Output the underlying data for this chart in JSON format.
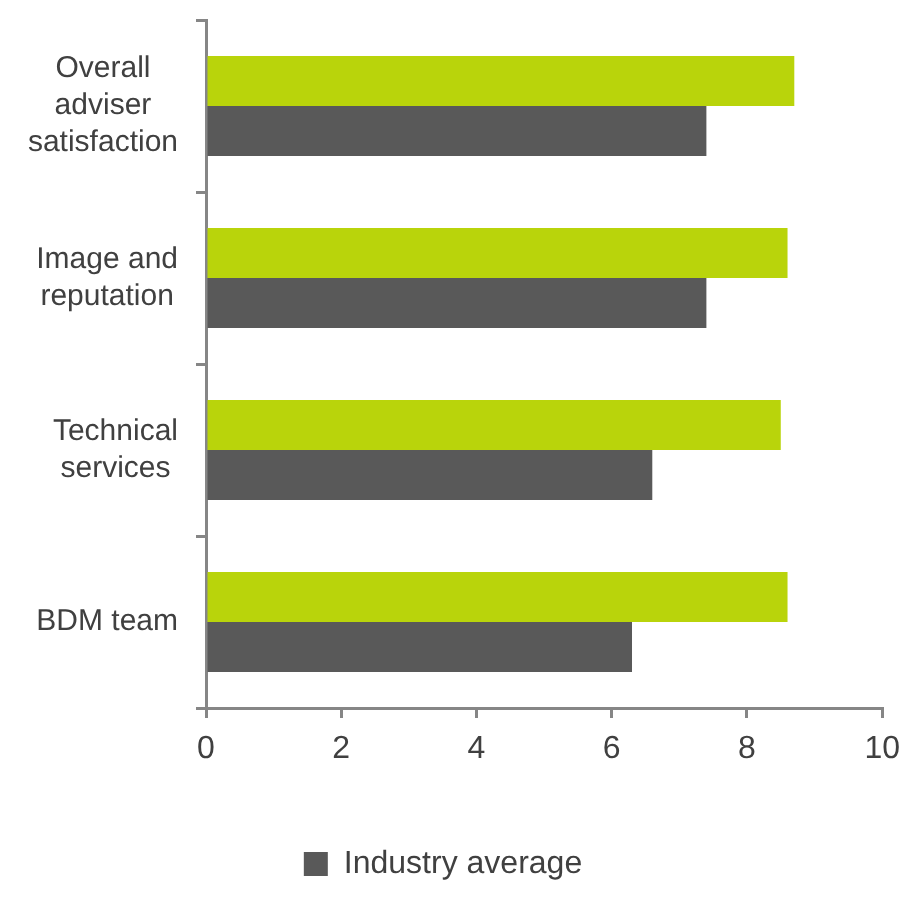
{
  "chart_data": {
    "type": "bar",
    "orientation": "horizontal",
    "categories": [
      "Overall adviser satisfaction",
      "Image and reputation",
      "Technical services",
      "BDM team"
    ],
    "series": [
      {
        "color": "#b9d40b",
        "values": [
          8.7,
          8.6,
          8.5,
          8.6
        ]
      },
      {
        "name": "Industry average",
        "color": "#595959",
        "values": [
          7.4,
          7.4,
          6.6,
          6.3
        ]
      }
    ],
    "xlim": [
      0,
      10
    ],
    "xticks": [
      0,
      2,
      4,
      6,
      8,
      10
    ],
    "grid": false,
    "legend": "bottom"
  }
}
